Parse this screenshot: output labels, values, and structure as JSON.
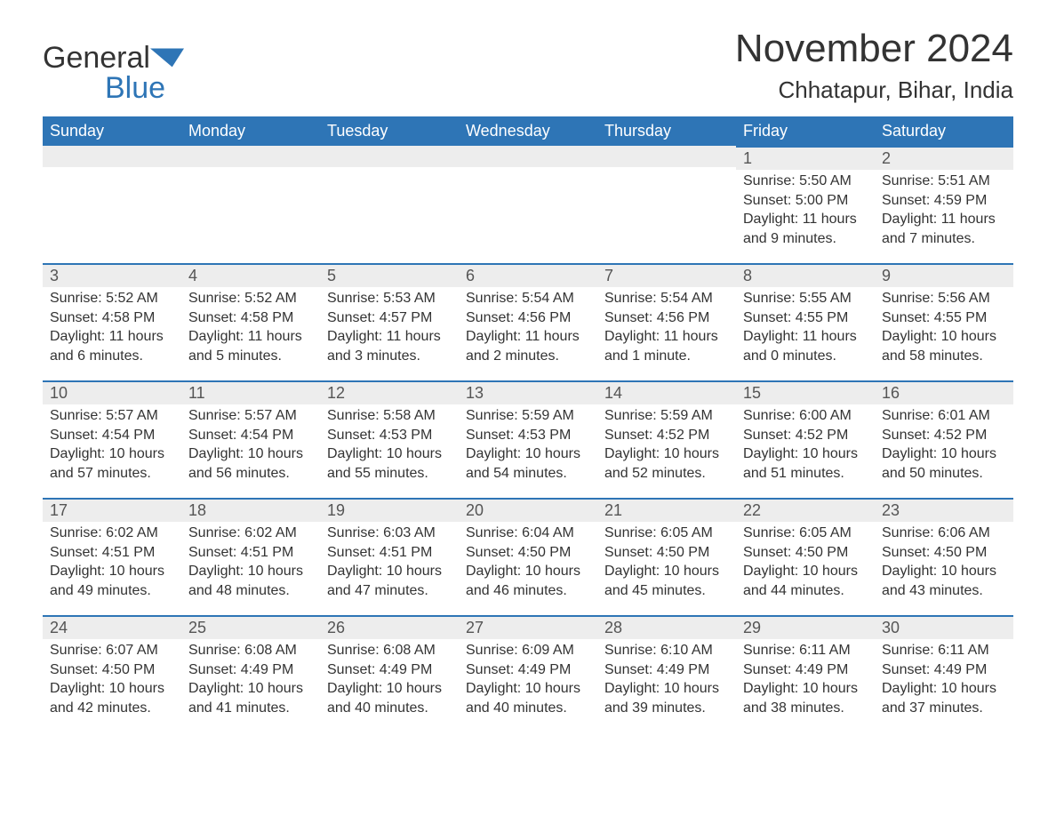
{
  "brand": {
    "name_a": "General",
    "name_b": "Blue"
  },
  "title": "November 2024",
  "location": "Chhatapur, Bihar, India",
  "colors": {
    "header_bg": "#2e75b6",
    "header_text": "#ffffff",
    "daynum_bg": "#ededed",
    "rule": "#2e75b6",
    "text": "#333333"
  },
  "weekdays": [
    "Sunday",
    "Monday",
    "Tuesday",
    "Wednesday",
    "Thursday",
    "Friday",
    "Saturday"
  ],
  "weeks": [
    [
      null,
      null,
      null,
      null,
      null,
      {
        "n": "1",
        "sr": "Sunrise: 5:50 AM",
        "ss": "Sunset: 5:00 PM",
        "dl": "Daylight: 11 hours and 9 minutes."
      },
      {
        "n": "2",
        "sr": "Sunrise: 5:51 AM",
        "ss": "Sunset: 4:59 PM",
        "dl": "Daylight: 11 hours and 7 minutes."
      }
    ],
    [
      {
        "n": "3",
        "sr": "Sunrise: 5:52 AM",
        "ss": "Sunset: 4:58 PM",
        "dl": "Daylight: 11 hours and 6 minutes."
      },
      {
        "n": "4",
        "sr": "Sunrise: 5:52 AM",
        "ss": "Sunset: 4:58 PM",
        "dl": "Daylight: 11 hours and 5 minutes."
      },
      {
        "n": "5",
        "sr": "Sunrise: 5:53 AM",
        "ss": "Sunset: 4:57 PM",
        "dl": "Daylight: 11 hours and 3 minutes."
      },
      {
        "n": "6",
        "sr": "Sunrise: 5:54 AM",
        "ss": "Sunset: 4:56 PM",
        "dl": "Daylight: 11 hours and 2 minutes."
      },
      {
        "n": "7",
        "sr": "Sunrise: 5:54 AM",
        "ss": "Sunset: 4:56 PM",
        "dl": "Daylight: 11 hours and 1 minute."
      },
      {
        "n": "8",
        "sr": "Sunrise: 5:55 AM",
        "ss": "Sunset: 4:55 PM",
        "dl": "Daylight: 11 hours and 0 minutes."
      },
      {
        "n": "9",
        "sr": "Sunrise: 5:56 AM",
        "ss": "Sunset: 4:55 PM",
        "dl": "Daylight: 10 hours and 58 minutes."
      }
    ],
    [
      {
        "n": "10",
        "sr": "Sunrise: 5:57 AM",
        "ss": "Sunset: 4:54 PM",
        "dl": "Daylight: 10 hours and 57 minutes."
      },
      {
        "n": "11",
        "sr": "Sunrise: 5:57 AM",
        "ss": "Sunset: 4:54 PM",
        "dl": "Daylight: 10 hours and 56 minutes."
      },
      {
        "n": "12",
        "sr": "Sunrise: 5:58 AM",
        "ss": "Sunset: 4:53 PM",
        "dl": "Daylight: 10 hours and 55 minutes."
      },
      {
        "n": "13",
        "sr": "Sunrise: 5:59 AM",
        "ss": "Sunset: 4:53 PM",
        "dl": "Daylight: 10 hours and 54 minutes."
      },
      {
        "n": "14",
        "sr": "Sunrise: 5:59 AM",
        "ss": "Sunset: 4:52 PM",
        "dl": "Daylight: 10 hours and 52 minutes."
      },
      {
        "n": "15",
        "sr": "Sunrise: 6:00 AM",
        "ss": "Sunset: 4:52 PM",
        "dl": "Daylight: 10 hours and 51 minutes."
      },
      {
        "n": "16",
        "sr": "Sunrise: 6:01 AM",
        "ss": "Sunset: 4:52 PM",
        "dl": "Daylight: 10 hours and 50 minutes."
      }
    ],
    [
      {
        "n": "17",
        "sr": "Sunrise: 6:02 AM",
        "ss": "Sunset: 4:51 PM",
        "dl": "Daylight: 10 hours and 49 minutes."
      },
      {
        "n": "18",
        "sr": "Sunrise: 6:02 AM",
        "ss": "Sunset: 4:51 PM",
        "dl": "Daylight: 10 hours and 48 minutes."
      },
      {
        "n": "19",
        "sr": "Sunrise: 6:03 AM",
        "ss": "Sunset: 4:51 PM",
        "dl": "Daylight: 10 hours and 47 minutes."
      },
      {
        "n": "20",
        "sr": "Sunrise: 6:04 AM",
        "ss": "Sunset: 4:50 PM",
        "dl": "Daylight: 10 hours and 46 minutes."
      },
      {
        "n": "21",
        "sr": "Sunrise: 6:05 AM",
        "ss": "Sunset: 4:50 PM",
        "dl": "Daylight: 10 hours and 45 minutes."
      },
      {
        "n": "22",
        "sr": "Sunrise: 6:05 AM",
        "ss": "Sunset: 4:50 PM",
        "dl": "Daylight: 10 hours and 44 minutes."
      },
      {
        "n": "23",
        "sr": "Sunrise: 6:06 AM",
        "ss": "Sunset: 4:50 PM",
        "dl": "Daylight: 10 hours and 43 minutes."
      }
    ],
    [
      {
        "n": "24",
        "sr": "Sunrise: 6:07 AM",
        "ss": "Sunset: 4:50 PM",
        "dl": "Daylight: 10 hours and 42 minutes."
      },
      {
        "n": "25",
        "sr": "Sunrise: 6:08 AM",
        "ss": "Sunset: 4:49 PM",
        "dl": "Daylight: 10 hours and 41 minutes."
      },
      {
        "n": "26",
        "sr": "Sunrise: 6:08 AM",
        "ss": "Sunset: 4:49 PM",
        "dl": "Daylight: 10 hours and 40 minutes."
      },
      {
        "n": "27",
        "sr": "Sunrise: 6:09 AM",
        "ss": "Sunset: 4:49 PM",
        "dl": "Daylight: 10 hours and 40 minutes."
      },
      {
        "n": "28",
        "sr": "Sunrise: 6:10 AM",
        "ss": "Sunset: 4:49 PM",
        "dl": "Daylight: 10 hours and 39 minutes."
      },
      {
        "n": "29",
        "sr": "Sunrise: 6:11 AM",
        "ss": "Sunset: 4:49 PM",
        "dl": "Daylight: 10 hours and 38 minutes."
      },
      {
        "n": "30",
        "sr": "Sunrise: 6:11 AM",
        "ss": "Sunset: 4:49 PM",
        "dl": "Daylight: 10 hours and 37 minutes."
      }
    ]
  ]
}
